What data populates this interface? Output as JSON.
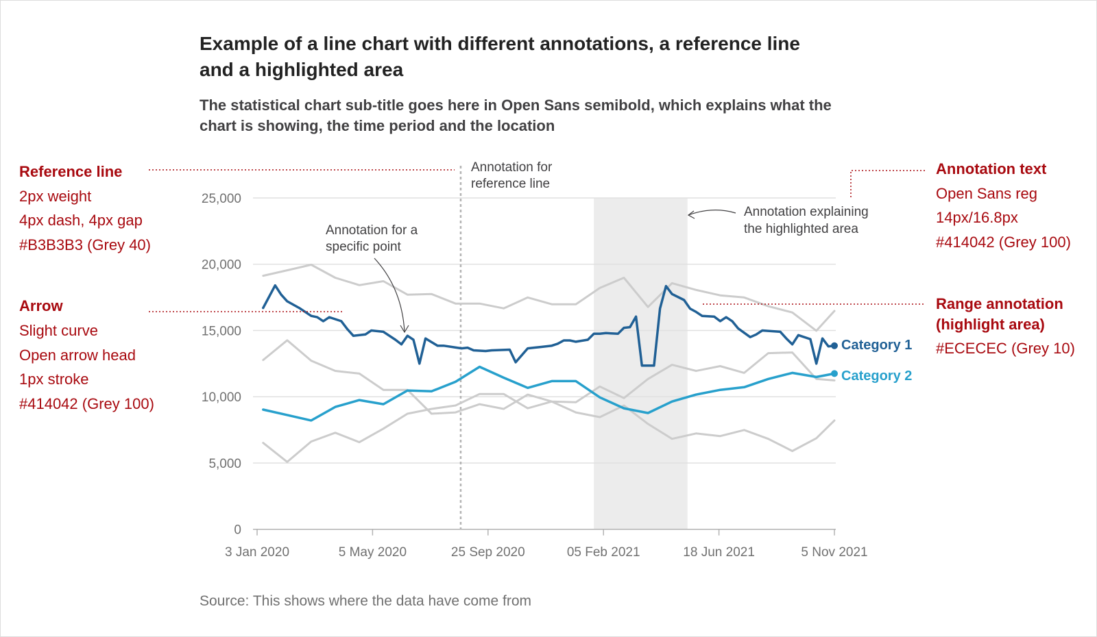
{
  "title": [
    "Example of a line chart with different annotations, a reference line",
    "and a highlighted area"
  ],
  "subtitle": [
    "The statistical chart sub-title goes here in Open Sans semibold, which explains what the",
    "chart is showing, the time period and the location"
  ],
  "source": "Source: This shows where the data have come from",
  "colors": {
    "annotation_red": "#a8090f",
    "category_1": "#206095",
    "category_2": "#27a0cc",
    "other_series": "#cccccc",
    "reference_line": "#b3b3b3",
    "highlight": "#ececec",
    "annotation_text": "#414042",
    "grid": "#e0e0e0"
  },
  "side_notes": {
    "reference_line": {
      "heading": "Reference line",
      "lines": [
        "2px weight",
        "4px dash, 4px gap",
        "#B3B3B3 (Grey 40)"
      ]
    },
    "arrow": {
      "heading": "Arrow",
      "lines": [
        "Slight curve",
        "Open arrow head",
        "1px stroke",
        "#414042 (Grey 100)"
      ]
    },
    "annotation_text": {
      "heading": "Annotation text",
      "lines": [
        "Open Sans reg",
        "14px/16.8px",
        "#414042 (Grey 100)"
      ]
    },
    "range_annotation": {
      "heading": [
        "Range annotation",
        "(highlight area)"
      ],
      "lines": [
        "#ECECEC (Grey 10)"
      ]
    }
  },
  "chart_data": {
    "type": "line",
    "title": "Example of a line chart with different annotations, a reference line and a highlighted area",
    "xlabel": "",
    "ylabel": "",
    "xlim": [
      "2020-01-03",
      "2021-11-05"
    ],
    "ylim": [
      0,
      25000
    ],
    "grid": "horizontal",
    "x_tick_labels": [
      "3 Jan 2020",
      "5 May 2020",
      "25 Sep 2020",
      "05 Feb 2021",
      "18 Jun 2021",
      "5 Nov 2021"
    ],
    "y_tick_values": [
      0,
      5000,
      10000,
      15000,
      20000,
      25000
    ],
    "y_tick_labels": [
      "0",
      "5,000",
      "10,000",
      "15,000",
      "20,000",
      "25,000"
    ],
    "reference_line": {
      "x": "2020-08-27",
      "style": "dashed"
    },
    "highlight_area": {
      "x_start": "2021-01-29",
      "x_end": "2021-05-18"
    },
    "annotations": {
      "reference_line": [
        "Annotation for",
        "reference line"
      ],
      "specific_point": [
        "Annotation for a",
        "specific point"
      ],
      "specific_point_target": {
        "x": "2020-06-26",
        "y": 14600
      },
      "highlight_area": [
        "Annotation explaining",
        "the highlighted area"
      ]
    },
    "series": [
      {
        "name": "",
        "role": "background",
        "x": [
          "2020-01-10",
          "2020-02-07",
          "2020-03-06",
          "2020-04-03",
          "2020-05-01",
          "2020-05-29",
          "2020-06-26",
          "2020-07-24",
          "2020-08-21",
          "2020-09-18",
          "2020-10-16",
          "2020-11-13",
          "2020-12-11",
          "2021-01-08",
          "2021-02-05",
          "2021-03-05",
          "2021-04-02",
          "2021-04-30",
          "2021-05-28",
          "2021-06-25",
          "2021-07-23",
          "2021-08-20",
          "2021-09-17",
          "2021-10-15",
          "2021-11-05"
        ],
        "y": [
          19130,
          19540,
          19960,
          18980,
          18420,
          18720,
          17700,
          17750,
          17030,
          17030,
          16670,
          17490,
          16980,
          16980,
          18210,
          18980,
          16770,
          18570,
          18060,
          17650,
          17490,
          16830,
          16360,
          14980,
          16470
        ]
      },
      {
        "name": "",
        "role": "background",
        "x": [
          "2020-01-10",
          "2020-02-07",
          "2020-03-06",
          "2020-04-03",
          "2020-05-01",
          "2020-05-29",
          "2020-06-26",
          "2020-07-24",
          "2020-08-21",
          "2020-09-18",
          "2020-10-16",
          "2020-11-13",
          "2020-12-11",
          "2021-01-08",
          "2021-02-05",
          "2021-03-05",
          "2021-04-02",
          "2021-04-30",
          "2021-05-28",
          "2021-06-25",
          "2021-07-23",
          "2021-08-20",
          "2021-09-17",
          "2021-10-15",
          "2021-11-05"
        ],
        "y": [
          12770,
          14260,
          12720,
          11950,
          11750,
          10520,
          10520,
          8720,
          8820,
          9440,
          9080,
          10160,
          9640,
          9590,
          10770,
          9900,
          11340,
          12410,
          11950,
          12310,
          11800,
          13290,
          13340,
          11340,
          11230
        ]
      },
      {
        "name": "",
        "role": "background",
        "x": [
          "2020-01-10",
          "2020-02-07",
          "2020-03-06",
          "2020-04-03",
          "2020-05-01",
          "2020-05-29",
          "2020-06-26",
          "2020-07-24",
          "2020-08-21",
          "2020-09-18",
          "2020-10-16",
          "2020-11-13",
          "2020-12-11",
          "2021-01-08",
          "2021-02-05",
          "2021-03-05",
          "2021-04-02",
          "2021-04-30",
          "2021-05-28",
          "2021-06-25",
          "2021-07-23",
          "2021-08-20",
          "2021-09-17",
          "2021-10-15",
          "2021-11-05"
        ],
        "y": [
          6520,
          5080,
          6620,
          7280,
          6570,
          7590,
          8720,
          9080,
          9340,
          10210,
          10210,
          9130,
          9640,
          8820,
          8460,
          9340,
          7950,
          6820,
          7230,
          7030,
          7490,
          6820,
          5900,
          6870,
          8210
        ]
      },
      {
        "name": "Category 2",
        "role": "highlight",
        "x": [
          "2020-01-10",
          "2020-02-07",
          "2020-03-06",
          "2020-04-03",
          "2020-05-01",
          "2020-05-29",
          "2020-06-26",
          "2020-07-24",
          "2020-08-21",
          "2020-09-18",
          "2020-10-16",
          "2020-11-13",
          "2020-12-11",
          "2021-01-08",
          "2021-02-05",
          "2021-03-05",
          "2021-04-02",
          "2021-04-30",
          "2021-05-28",
          "2021-06-25",
          "2021-07-23",
          "2021-08-20",
          "2021-09-17",
          "2021-10-15",
          "2021-11-05"
        ],
        "y": [
          9030,
          8620,
          8210,
          9230,
          9750,
          9440,
          10470,
          10410,
          11130,
          12260,
          11440,
          10670,
          11180,
          11180,
          9950,
          9130,
          8770,
          9640,
          10160,
          10520,
          10720,
          11340,
          11800,
          11490,
          11750
        ]
      },
      {
        "name": "Category 1",
        "role": "highlight",
        "x": [
          "2020-01-10",
          "2020-01-24",
          "2020-01-31",
          "2020-02-07",
          "2020-02-21",
          "2020-02-28",
          "2020-03-06",
          "2020-03-13",
          "2020-03-20",
          "2020-03-27",
          "2020-04-10",
          "2020-04-17",
          "2020-04-24",
          "2020-05-08",
          "2020-05-15",
          "2020-05-29",
          "2020-06-12",
          "2020-06-19",
          "2020-06-26",
          "2020-07-03",
          "2020-07-10",
          "2020-07-17",
          "2020-07-31",
          "2020-08-07",
          "2020-08-28",
          "2020-09-04",
          "2020-09-11",
          "2020-09-25",
          "2020-10-02",
          "2020-10-23",
          "2020-10-30",
          "2020-11-13",
          "2020-11-20",
          "2020-11-27",
          "2020-12-11",
          "2020-12-18",
          "2020-12-25",
          "2021-01-01",
          "2021-01-08",
          "2021-01-22",
          "2021-01-29",
          "2021-02-05",
          "2021-02-12",
          "2021-02-26",
          "2021-03-05",
          "2021-03-12",
          "2021-03-19",
          "2021-03-26",
          "2021-04-09",
          "2021-04-16",
          "2021-04-23",
          "2021-04-30",
          "2021-05-14",
          "2021-05-21",
          "2021-05-28",
          "2021-06-04",
          "2021-06-18",
          "2021-06-25",
          "2021-07-02",
          "2021-07-09",
          "2021-07-16",
          "2021-07-30",
          "2021-08-06",
          "2021-08-13",
          "2021-09-03",
          "2021-09-10",
          "2021-09-17",
          "2021-09-24",
          "2021-10-08",
          "2021-10-15",
          "2021-10-22",
          "2021-10-29",
          "2021-11-05"
        ],
        "y": [
          16700,
          18400,
          17700,
          17200,
          16700,
          16400,
          16100,
          16000,
          15700,
          16000,
          15700,
          15100,
          14600,
          14700,
          15000,
          14900,
          14300,
          13950,
          14600,
          14300,
          12500,
          14400,
          13850,
          13850,
          13650,
          13700,
          13500,
          13450,
          13500,
          13550,
          12600,
          13650,
          13700,
          13750,
          13850,
          14000,
          14250,
          14250,
          14150,
          14300,
          14750,
          14750,
          14800,
          14750,
          15200,
          15250,
          16050,
          12350,
          12350,
          16650,
          18350,
          17750,
          17300,
          16650,
          16400,
          16100,
          16050,
          15700,
          16000,
          15700,
          15150,
          14500,
          14700,
          15000,
          14900,
          14400,
          13950,
          14650,
          14350,
          12500,
          14400,
          13800,
          13850
        ]
      }
    ]
  }
}
